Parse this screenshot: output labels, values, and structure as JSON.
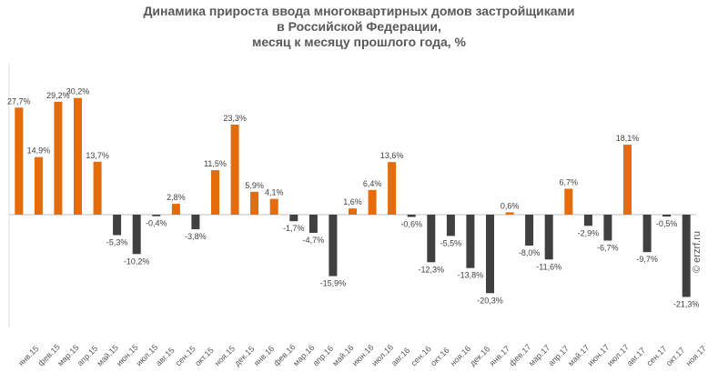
{
  "chart_data": {
    "type": "bar",
    "title_lines": [
      "Динамика прироста ввода многоквартирных домов застройщиками",
      "в Российской Федерации,",
      "месяц к месяцу прошлого года, %"
    ],
    "categories": [
      "янв.15",
      "фев.15",
      "мар.15",
      "апр.15",
      "май.15",
      "июн.15",
      "июл.15",
      "авг.15",
      "сен.15",
      "окт.15",
      "ноя.15",
      "дек.15",
      "янв.16",
      "фев.16",
      "мар.16",
      "апр.16",
      "май.16",
      "июн.16",
      "июл.16",
      "авг.16",
      "сен.16",
      "окт.16",
      "ноя.16",
      "дек.16",
      "янв.17",
      "фев.17",
      "мар.17",
      "апр.17",
      "май.17",
      "июн.17",
      "июл.17",
      "авг.17",
      "сен.17",
      "окт.17",
      "ноя.17"
    ],
    "values": [
      27.7,
      14.9,
      29.2,
      30.2,
      13.7,
      -5.3,
      -10.2,
      -0.4,
      2.8,
      -3.8,
      11.5,
      23.3,
      5.9,
      4.1,
      -1.7,
      -4.7,
      -15.9,
      1.6,
      6.4,
      13.6,
      -0.6,
      -12.3,
      -5.5,
      -13.8,
      -20.3,
      0.6,
      -8.0,
      -11.6,
      6.7,
      -2.9,
      -6.7,
      18.1,
      -9.7,
      -0.5,
      -21.3
    ],
    "value_labels": [
      "27,7%",
      "14,9%",
      "29,2%",
      "30,2%",
      "13,7%",
      "-5,3%",
      "-10,2%",
      "-0,4%",
      "2,8%",
      "-3,8%",
      "11,5%",
      "23,3%",
      "5,9%",
      "4,1%",
      "-1,7%",
      "-4,7%",
      "-15,9%",
      "1,6%",
      "6,4%",
      "13,6%",
      "-0,6%",
      "-12,3%",
      "-5,5%",
      "-13,8%",
      "-20,3%",
      "0,6%",
      "-8,0%",
      "-11,6%",
      "6,7%",
      "-2,9%",
      "-6,7%",
      "18,1%",
      "-9,7%",
      "-0,5%",
      "-21,3%"
    ],
    "colors": {
      "positive": "#E46C0A",
      "negative": "#404040",
      "axis": "#BFBFBF",
      "text": "#404040"
    },
    "grid": false,
    "legend": "none"
  },
  "watermark": "© erzrf.ru"
}
